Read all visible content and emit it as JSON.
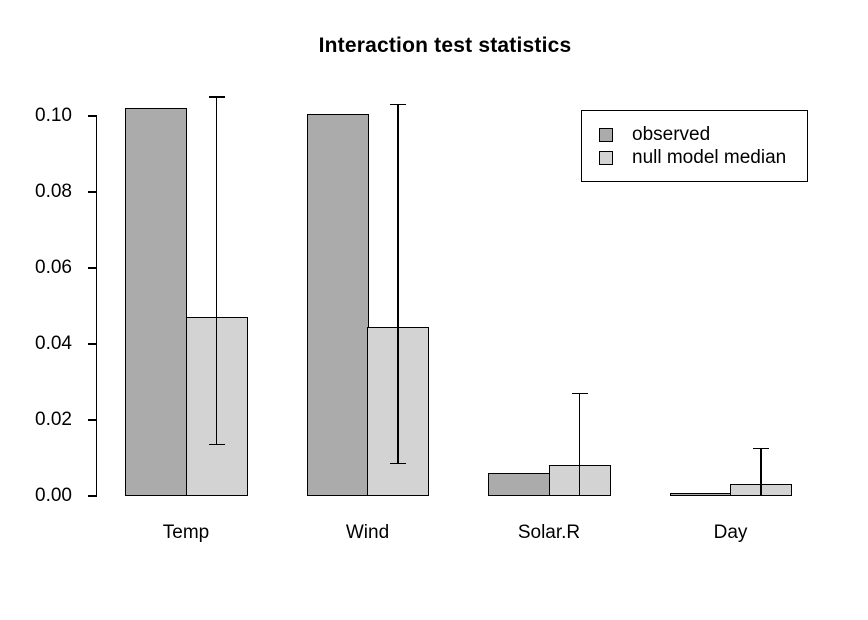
{
  "page": {
    "background_color": "#ffffff"
  },
  "chart_data": {
    "type": "bar",
    "title": "Interaction test statistics",
    "categories": [
      "Temp",
      "Wind",
      "Solar.R",
      "Day"
    ],
    "series": [
      {
        "name": "observed",
        "color": "#ababab",
        "values": [
          0.102,
          0.1005,
          0.0061,
          0.0007
        ]
      },
      {
        "name": "null model median",
        "color": "#d3d3d3",
        "values": [
          0.047,
          0.0445,
          0.0082,
          0.0032
        ]
      }
    ],
    "error_bars": {
      "attached_to": "null model median",
      "upper": [
        0.105,
        0.103,
        0.027,
        0.0125
      ],
      "lower": [
        0.0135,
        0.0085,
        0,
        0
      ]
    },
    "ylim": [
      0,
      0.1
    ],
    "yticks": [
      0,
      0.02,
      0.04,
      0.06,
      0.08,
      0.1
    ],
    "ytick_labels": [
      "0.00",
      "0.02",
      "0.04",
      "0.06",
      "0.08",
      "0.10"
    ],
    "xlabel": "",
    "ylabel": "",
    "grid": false,
    "bar_border_color": "#000000",
    "axis_color": "#000000",
    "legend": {
      "position": "top-right",
      "items": [
        {
          "label": "observed",
          "color": "#ababab"
        },
        {
          "label": "null model median",
          "color": "#d3d3d3"
        }
      ]
    }
  }
}
